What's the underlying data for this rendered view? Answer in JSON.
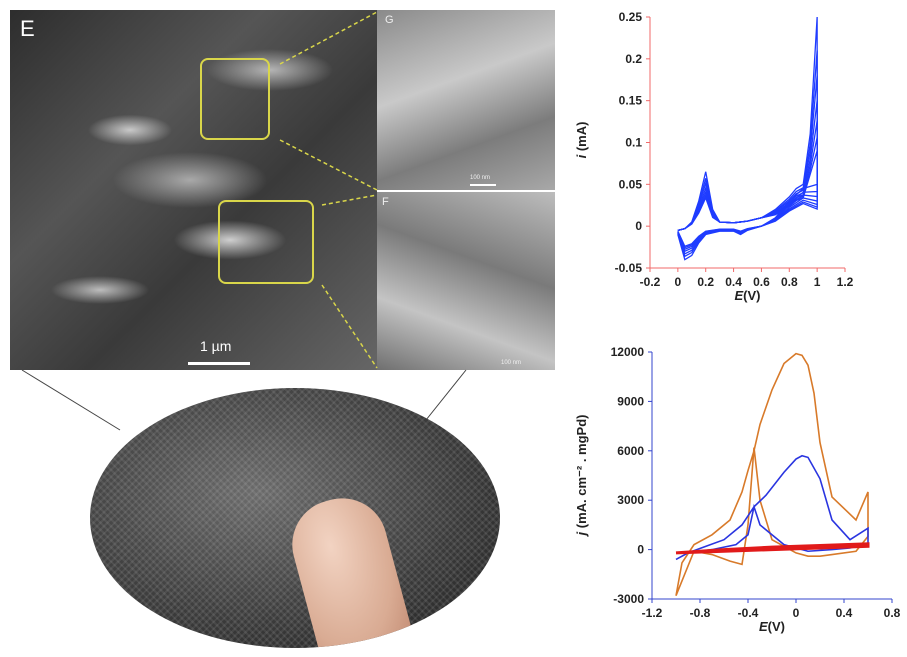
{
  "sem": {
    "main_label": "E",
    "scale_label": "1 µm",
    "inset_g_label": "G",
    "inset_f_label": "F",
    "inset_g_scale": "100 nm",
    "inset_f_scale": "100 nm"
  },
  "colors": {
    "zoom_box": "#d9d64a",
    "cv_top": "#1f3cff",
    "cv_orange": "#d87a2a",
    "cv_blue": "#2a35e0",
    "cv_red": "#e11a1a",
    "top_axis": "#f06a6a",
    "bottom_axis": "#3344cc"
  },
  "chart_data": [
    {
      "type": "line",
      "xlabel_italic": "E",
      "xlabel_rest": "(V)",
      "ylabel_italic": "i",
      "ylabel_rest": " (mA)",
      "xlim": [
        -0.2,
        1.2
      ],
      "ylim": [
        -0.05,
        0.25
      ],
      "xticks": [
        -0.2,
        0,
        0.2,
        0.4,
        0.6,
        0.8,
        1,
        1.2
      ],
      "yticks": [
        -0.05,
        0,
        0.05,
        0.1,
        0.15,
        0.2,
        0.25
      ],
      "xtick_labels": [
        "-0.2",
        "0",
        "0.2",
        "0.4",
        "0.6",
        "0.8",
        "1",
        "1.2"
      ],
      "ytick_labels": [
        "-0.05",
        "0",
        "0.05",
        "0.1",
        "0.15",
        "0.2",
        "0.25"
      ],
      "grid": false,
      "series": [
        {
          "cycle": 1,
          "peak_scale": 1.0,
          "values_x": [
            0.0,
            0.05,
            0.1,
            0.15,
            0.2,
            0.25,
            0.3,
            0.4,
            0.5,
            0.6,
            0.7,
            0.8,
            0.85,
            0.9,
            0.95,
            1.0
          ],
          "values_y": [
            -0.005,
            -0.003,
            0.005,
            0.03,
            0.065,
            0.02,
            0.005,
            0.004,
            0.006,
            0.01,
            0.02,
            0.035,
            0.045,
            0.05,
            0.11,
            0.25
          ]
        },
        {
          "cycle": 2,
          "peak_scale": 0.8
        },
        {
          "cycle": 3,
          "peak_scale": 0.65
        },
        {
          "cycle": 4,
          "peak_scale": 0.5
        },
        {
          "cycle": 5,
          "peak_scale": 0.38
        },
        {
          "cycle": 6,
          "peak_scale": 0.28
        },
        {
          "cycle": 7,
          "peak_scale": 0.2
        }
      ],
      "reverse_x": [
        1.0,
        0.9,
        0.8,
        0.7,
        0.6,
        0.5,
        0.45,
        0.4,
        0.3,
        0.2,
        0.15,
        0.1,
        0.05,
        0.0
      ],
      "reverse_y": [
        0.05,
        0.045,
        0.03,
        0.01,
        0.0,
        -0.005,
        -0.01,
        -0.006,
        -0.006,
        -0.01,
        -0.02,
        -0.035,
        -0.04,
        -0.01
      ]
    },
    {
      "type": "line",
      "xlabel_italic": "E",
      "xlabel_rest": "(V)",
      "ylabel_italic": "j",
      "ylabel_rest": " (mA. cm⁻² . mgPd)",
      "xlim": [
        -1.2,
        0.8
      ],
      "ylim": [
        -3000,
        12000
      ],
      "xticks": [
        -1.2,
        -0.8,
        -0.4,
        0,
        0.4,
        0.8
      ],
      "yticks": [
        -3000,
        0,
        3000,
        6000,
        9000,
        12000
      ],
      "xtick_labels": [
        "-1.2",
        "-0.8",
        "-0.4",
        "0",
        "0.4",
        "0.8"
      ],
      "ytick_labels": [
        "-3000",
        "0",
        "3000",
        "6000",
        "9000",
        "12000"
      ],
      "grid": false,
      "series": [
        {
          "color_key": "cv_orange",
          "x": [
            -1.0,
            -0.95,
            -0.85,
            -0.7,
            -0.55,
            -0.45,
            -0.4,
            -0.35,
            -0.3,
            -0.2,
            -0.1,
            0.0,
            0.05,
            0.1,
            0.15,
            0.2,
            0.3,
            0.5,
            0.6,
            0.6,
            0.5,
            0.3,
            0.2,
            0.1,
            0.0,
            -0.1,
            -0.2,
            -0.3,
            -0.35,
            -0.4,
            -0.45,
            -0.55,
            -0.7,
            -0.85,
            -1.0
          ],
          "y": [
            -2800,
            -800,
            300,
            900,
            1800,
            3500,
            4800,
            6000,
            7600,
            9700,
            11300,
            11900,
            11800,
            11200,
            9500,
            6500,
            3200,
            1800,
            3500,
            800,
            -100,
            -300,
            -400,
            -400,
            -200,
            200,
            600,
            3000,
            6200,
            1500,
            -900,
            -700,
            -300,
            -100,
            -2800
          ]
        },
        {
          "color_key": "cv_blue",
          "x": [
            -1.0,
            -0.9,
            -0.75,
            -0.6,
            -0.45,
            -0.35,
            -0.25,
            -0.1,
            0.0,
            0.05,
            0.1,
            0.2,
            0.3,
            0.45,
            0.6,
            0.6,
            0.45,
            0.3,
            0.1,
            -0.1,
            -0.3,
            -0.35,
            -0.4,
            -0.5,
            -0.7,
            -0.9,
            -1.0
          ],
          "y": [
            -600,
            -200,
            200,
            600,
            1500,
            2600,
            3300,
            4700,
            5500,
            5700,
            5600,
            4300,
            1800,
            600,
            1300,
            400,
            100,
            0,
            -100,
            300,
            1500,
            2600,
            900,
            300,
            0,
            -200,
            -600
          ]
        },
        {
          "color_key": "cv_red",
          "x": [
            -1.0,
            -0.6,
            -0.2,
            0.2,
            0.6,
            0.6,
            0.2,
            -0.2,
            -0.6,
            -1.0
          ],
          "y": [
            -200,
            0,
            150,
            250,
            350,
            200,
            100,
            0,
            -100,
            -200
          ]
        }
      ]
    }
  ]
}
